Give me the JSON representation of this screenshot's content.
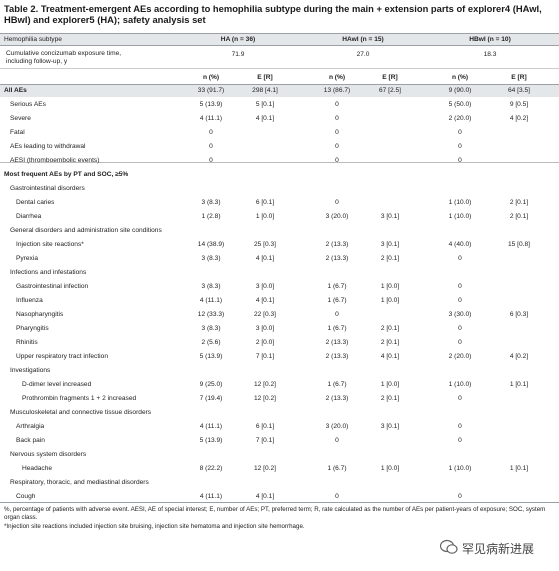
{
  "title": {
    "label": "Table 2.",
    "text": "Treatment-emergent AEs according to hemophilia subtype during the main + extension parts of explorer4 (HAwI, HBwI) and explorer5 (HA); safety analysis set"
  },
  "table": {
    "header": [
      "Hemophilia subtype",
      "HA (n = 36)",
      "HAwI (n = 15)",
      "HBwI (n = 10)"
    ],
    "exposure": {
      "label": "Cumulative concizumab exposure time, including follow-up, y",
      "values": [
        "71.9",
        "27.0",
        "18.3"
      ]
    },
    "subheader": [
      "n (%)",
      "E [R]",
      "n (%)",
      "E [R]",
      "n (%)",
      "E [R]"
    ],
    "rows": [
      {
        "kind": "total",
        "label": "All AEs",
        "cells": [
          "33 (91.7)",
          "298 [4.1]",
          "13 (86.7)",
          "67 [2.5]",
          "9 (90.0)",
          "64 [3.5]"
        ]
      },
      {
        "kind": "item",
        "label": "Serious AEs",
        "cells": [
          "5 (13.9)",
          "5 [0.1]",
          "0",
          null,
          "5 (50.0)",
          "9 [0.5]"
        ]
      },
      {
        "kind": "item",
        "label": "Severe",
        "cells": [
          "4 (11.1)",
          "4 [0.1]",
          "0",
          null,
          "2 (20.0)",
          "4 [0.2]"
        ]
      },
      {
        "kind": "item",
        "label": "Fatal",
        "cells": [
          "0",
          null,
          "0",
          null,
          "0",
          null
        ]
      },
      {
        "kind": "item",
        "label": "AEs leading to withdrawal",
        "cells": [
          "0",
          null,
          "0",
          null,
          "0",
          null
        ]
      },
      {
        "kind": "item",
        "label": "AESI (thromboembolic events)",
        "cells": [
          "0",
          null,
          "0",
          null,
          "0",
          null
        ]
      },
      {
        "kind": "section",
        "label": "Most frequent AEs by PT and SOC, ≥5%"
      },
      {
        "kind": "group",
        "label": "Gastrointestinal disorders"
      },
      {
        "kind": "sub",
        "label": "Dental caries",
        "cells": [
          "3 (8.3)",
          "6 [0.1]",
          "0",
          null,
          "1 (10.0)",
          "2 [0.1]"
        ]
      },
      {
        "kind": "sub",
        "label": "Diarrhea",
        "cells": [
          "1 (2.8)",
          "1 [0.0]",
          "3 (20.0)",
          "3 [0.1]",
          "1 (10.0)",
          "2 [0.1]"
        ]
      },
      {
        "kind": "group",
        "label": "General disorders and administration site conditions"
      },
      {
        "kind": "sub",
        "label": "Injection site reactions*",
        "cells": [
          "14 (38.9)",
          "25 [0.3]",
          "2 (13.3)",
          "3 [0.1]",
          "4 (40.0)",
          "15 [0.8]"
        ]
      },
      {
        "kind": "sub",
        "label": "Pyrexia",
        "cells": [
          "3 (8.3)",
          "4 [0.1]",
          "2 (13.3)",
          "2 [0.1]",
          "0",
          null
        ]
      },
      {
        "kind": "group",
        "label": "Infections and infestations"
      },
      {
        "kind": "sub",
        "label": "Gastrointestinal infection",
        "cells": [
          "3 (8.3)",
          "3 [0.0]",
          "1 (6.7)",
          "1 [0.0]",
          "0",
          null
        ]
      },
      {
        "kind": "sub",
        "label": "Influenza",
        "cells": [
          "4 (11.1)",
          "4 [0.1]",
          "1 (6.7)",
          "1 [0.0]",
          "0",
          null
        ]
      },
      {
        "kind": "sub",
        "label": "Nasopharyngitis",
        "cells": [
          "12 (33.3)",
          "22 [0.3]",
          "0",
          null,
          "3 (30.0)",
          "6 [0.3]"
        ]
      },
      {
        "kind": "sub",
        "label": "Pharyngitis",
        "cells": [
          "3 (8.3)",
          "3 [0.0]",
          "1 (6.7)",
          "2 [0.1]",
          "0",
          null
        ]
      },
      {
        "kind": "sub",
        "label": "Rhinitis",
        "cells": [
          "2 (5.6)",
          "2 [0.0]",
          "2 (13.3)",
          "2 [0.1]",
          "0",
          null
        ]
      },
      {
        "kind": "sub",
        "label": "Upper respiratory tract infection",
        "cells": [
          "5 (13.9)",
          "7 [0.1]",
          "2 (13.3)",
          "4 [0.1]",
          "2 (20.0)",
          "4 [0.2]"
        ]
      },
      {
        "kind": "group",
        "label": "Investigations"
      },
      {
        "kind": "deep",
        "label": "D-dimer level increased",
        "cells": [
          "9 (25.0)",
          "12 [0.2]",
          "1 (6.7)",
          "1 [0.0]",
          "1 (10.0)",
          "1 [0.1]"
        ]
      },
      {
        "kind": "deep",
        "label": "Prothrombin fragments 1 + 2 increased",
        "cells": [
          "7 (19.4)",
          "12 [0.2]",
          "2 (13.3)",
          "2 [0.1]",
          "0",
          null
        ]
      },
      {
        "kind": "group",
        "label": "Musculoskeletal and connective tissue disorders"
      },
      {
        "kind": "sub",
        "label": "Arthralgia",
        "cells": [
          "4 (11.1)",
          "6 [0.1]",
          "3 (20.0)",
          "3 [0.1]",
          "0",
          null
        ]
      },
      {
        "kind": "sub",
        "label": "Back pain",
        "cells": [
          "5 (13.9)",
          "7 [0.1]",
          "0",
          null,
          "0",
          null
        ]
      },
      {
        "kind": "group",
        "label": "Nervous system disorders"
      },
      {
        "kind": "deep",
        "label": "Headache",
        "cells": [
          "8 (22.2)",
          "12 [0.2]",
          "1 (6.7)",
          "1 [0.0]",
          "1 (10.0)",
          "1 [0.1]"
        ]
      },
      {
        "kind": "group",
        "label": "Respiratory, thoracic, and mediastinal disorders"
      },
      {
        "kind": "sub",
        "label": "Cough",
        "cells": [
          "4 (11.1)",
          "4 [0.1]",
          "0",
          null,
          "0",
          null
        ]
      }
    ]
  },
  "footnotes": [
    "%, percentage of patients with adverse event. AESI, AE of special interest; E, number of AEs; PT, preferred term; R, rate calculated as the number of AEs per patient-years of exposure; SOC, system organ class.",
    "*Injection site reactions included injection site bruising, injection site hematoma and injection site hemorrhage."
  ],
  "watermark": "罕见病新进展"
}
